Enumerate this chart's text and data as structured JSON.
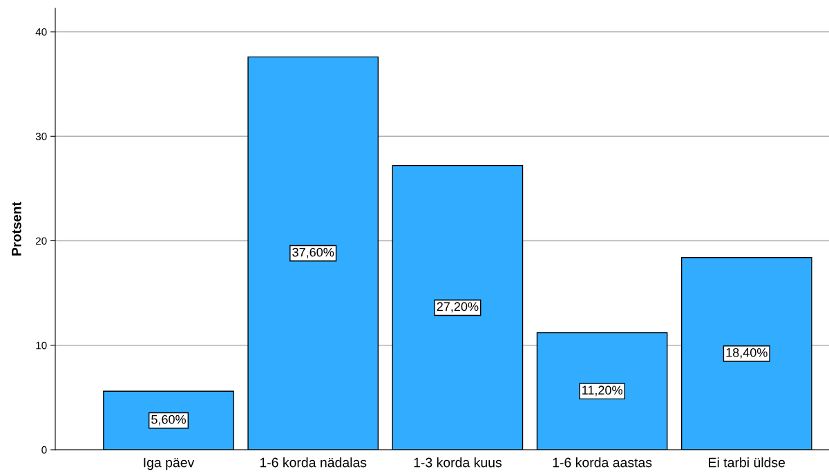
{
  "chart_data": {
    "type": "bar",
    "ylabel": "Protsent",
    "categories": [
      "Iga päev",
      "1-6 korda nädalas",
      "1-3 korda kuus",
      "1-6 korda aastas",
      "Ei tarbi üldse"
    ],
    "values": [
      5.6,
      37.6,
      27.2,
      11.2,
      18.4
    ],
    "value_labels": [
      "5,60%",
      "37,60%",
      "27,20%",
      "11,20%",
      "18,40%"
    ],
    "color": "#31acfe",
    "ylim": [
      0,
      42.25
    ],
    "yticks": [
      0,
      10,
      20,
      30,
      40
    ],
    "grid": "y",
    "legend": false
  }
}
